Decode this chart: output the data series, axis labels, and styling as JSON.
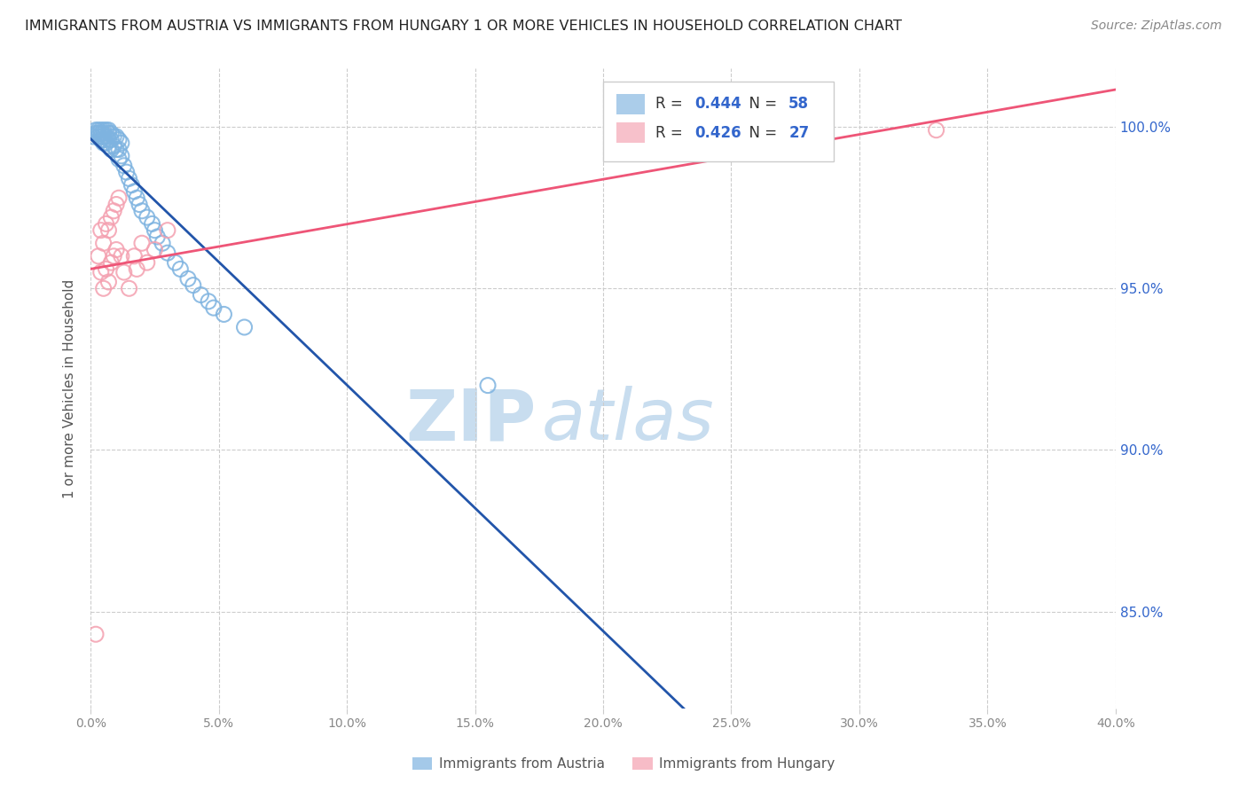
{
  "title": "IMMIGRANTS FROM AUSTRIA VS IMMIGRANTS FROM HUNGARY 1 OR MORE VEHICLES IN HOUSEHOLD CORRELATION CHART",
  "source": "Source: ZipAtlas.com",
  "ylabel": "1 or more Vehicles in Household",
  "yaxis_labels": [
    "100.0%",
    "95.0%",
    "90.0%",
    "85.0%"
  ],
  "yaxis_values": [
    1.0,
    0.95,
    0.9,
    0.85
  ],
  "xmin": 0.0,
  "xmax": 0.4,
  "ymin": 0.82,
  "ymax": 1.018,
  "austria_R": 0.444,
  "austria_N": 58,
  "hungary_R": 0.426,
  "hungary_N": 27,
  "austria_color": "#7EB3E0",
  "hungary_color": "#F4A0B0",
  "austria_line_color": "#2255AA",
  "hungary_line_color": "#EE5577",
  "legend_R_color": "#3366CC",
  "watermark_zip_color": "#C8DDEF",
  "watermark_atlas_color": "#C8DDEF",
  "austria_x": [
    0.001,
    0.002,
    0.002,
    0.003,
    0.003,
    0.003,
    0.004,
    0.004,
    0.004,
    0.004,
    0.005,
    0.005,
    0.005,
    0.005,
    0.005,
    0.006,
    0.006,
    0.006,
    0.007,
    0.007,
    0.007,
    0.007,
    0.008,
    0.008,
    0.008,
    0.009,
    0.009,
    0.01,
    0.01,
    0.011,
    0.011,
    0.011,
    0.012,
    0.012,
    0.013,
    0.014,
    0.015,
    0.016,
    0.017,
    0.018,
    0.019,
    0.02,
    0.022,
    0.024,
    0.025,
    0.026,
    0.028,
    0.03,
    0.033,
    0.035,
    0.038,
    0.04,
    0.043,
    0.046,
    0.048,
    0.052,
    0.06,
    0.155
  ],
  "austria_y": [
    0.997,
    0.999,
    0.998,
    0.999,
    0.998,
    0.997,
    0.999,
    0.998,
    0.997,
    0.996,
    0.999,
    0.998,
    0.997,
    0.996,
    0.995,
    0.999,
    0.997,
    0.995,
    0.999,
    0.998,
    0.996,
    0.994,
    0.998,
    0.996,
    0.993,
    0.997,
    0.994,
    0.997,
    0.993,
    0.996,
    0.993,
    0.99,
    0.995,
    0.991,
    0.988,
    0.986,
    0.984,
    0.982,
    0.98,
    0.978,
    0.976,
    0.974,
    0.972,
    0.97,
    0.968,
    0.966,
    0.964,
    0.961,
    0.958,
    0.956,
    0.953,
    0.951,
    0.948,
    0.946,
    0.944,
    0.942,
    0.938,
    0.92
  ],
  "hungary_x": [
    0.002,
    0.003,
    0.004,
    0.004,
    0.005,
    0.005,
    0.006,
    0.006,
    0.007,
    0.007,
    0.008,
    0.008,
    0.009,
    0.009,
    0.01,
    0.01,
    0.011,
    0.012,
    0.013,
    0.015,
    0.017,
    0.018,
    0.02,
    0.022,
    0.025,
    0.03,
    0.33
  ],
  "hungary_y": [
    0.843,
    0.96,
    0.955,
    0.968,
    0.964,
    0.95,
    0.97,
    0.956,
    0.968,
    0.952,
    0.972,
    0.958,
    0.974,
    0.96,
    0.976,
    0.962,
    0.978,
    0.96,
    0.955,
    0.95,
    0.96,
    0.956,
    0.964,
    0.958,
    0.962,
    0.968,
    0.999
  ]
}
